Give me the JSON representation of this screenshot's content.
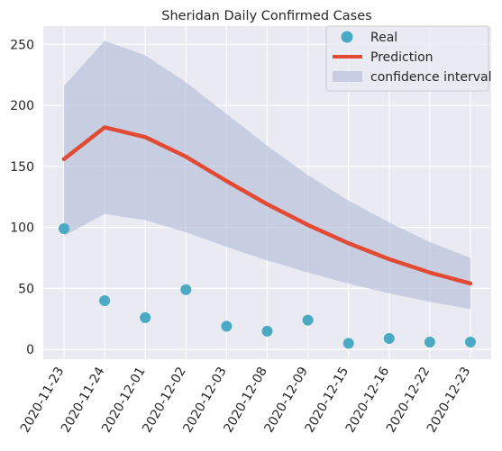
{
  "chart_data": {
    "type": "line",
    "title": "Sheridan Daily Confirmed Cases",
    "xlabel": "",
    "ylabel": "",
    "ylim": [
      -8,
      265
    ],
    "yticks": [
      0,
      50,
      100,
      150,
      200,
      250
    ],
    "grid": true,
    "legend_position": "top-right",
    "categories": [
      "2020-11-23",
      "2020-11-24",
      "2020-12-01",
      "2020-12-02",
      "2020-12-03",
      "2020-12-08",
      "2020-12-09",
      "2020-12-15",
      "2020-12-16",
      "2020-12-22",
      "2020-12-23"
    ],
    "series": [
      {
        "name": "Real",
        "kind": "scatter",
        "color": "#4aaac4",
        "values": [
          99,
          40,
          26,
          49,
          19,
          15,
          24,
          5,
          9,
          6,
          6
        ]
      },
      {
        "name": "Prediction",
        "kind": "line",
        "color": "#e24a33",
        "values": [
          156,
          182,
          174,
          158,
          138,
          119,
          102,
          87,
          74,
          63,
          54
        ]
      },
      {
        "name": "confidence interval",
        "kind": "band",
        "color": "#b8c2dc",
        "lower": [
          93,
          111,
          106,
          96,
          84,
          73,
          63,
          54,
          46,
          39,
          33
        ],
        "upper": [
          216,
          253,
          241,
          219,
          193,
          167,
          143,
          122,
          104,
          88,
          75
        ]
      }
    ]
  }
}
